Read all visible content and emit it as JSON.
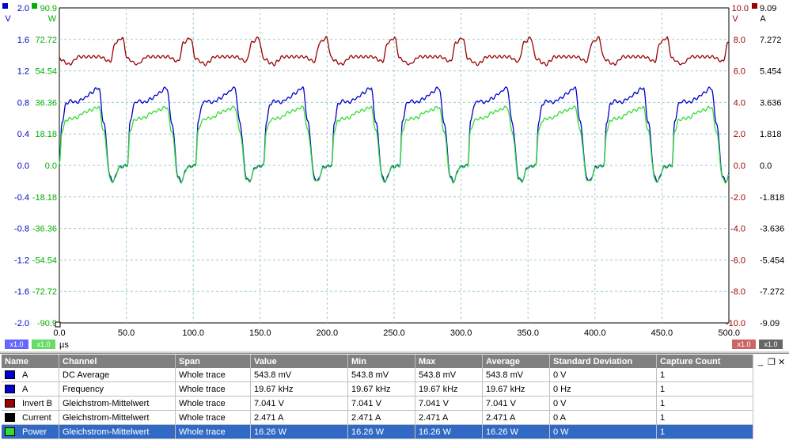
{
  "chart_data": {
    "type": "line",
    "x_unit": "µs",
    "xlim": [
      0,
      500
    ],
    "x_ticks": [
      "0.0",
      "50.0",
      "100.0",
      "150.0",
      "200.0",
      "250.0",
      "300.0",
      "350.0",
      "400.0",
      "450.0",
      "500.0"
    ],
    "axes": {
      "left1": {
        "unit": "V",
        "color": "#0000cc",
        "top": "2.0",
        "ticks": [
          "1.6",
          "1.2",
          "0.8",
          "0.4",
          "0.0",
          "-0.4",
          "-0.8",
          "-1.2",
          "-1.6",
          "-2.0"
        ],
        "range": [
          -2.0,
          2.0
        ]
      },
      "left2": {
        "unit": "W",
        "color": "#00b000",
        "top": "90.9",
        "ticks": [
          "72.72",
          "54.54",
          "36.36",
          "18.18",
          "0.0",
          "-18.18",
          "-36.36",
          "-54.54",
          "-72.72",
          "-90.9"
        ],
        "range": [
          -90.9,
          90.9
        ]
      },
      "right1": {
        "unit": "V",
        "color": "#990000",
        "top": "10.0",
        "ticks": [
          "8.0",
          "6.0",
          "4.0",
          "2.0",
          "0.0",
          "-2.0",
          "-4.0",
          "-6.0",
          "-8.0",
          "-10.0"
        ],
        "range": [
          -10,
          10
        ]
      },
      "right2": {
        "unit": "A",
        "color": "#000000",
        "top": "9.09",
        "ticks": [
          "7.272",
          "5.454",
          "3.636",
          "1.818",
          "0.0",
          "-1.818",
          "-3.636",
          "-5.454",
          "-7.272",
          "-9.09"
        ],
        "range": [
          -9.09,
          9.09
        ]
      }
    },
    "period_us": 50.84,
    "series": [
      {
        "name": "A",
        "color": "#0000cc",
        "axis": "left1",
        "shape_x": [
          0,
          2,
          5,
          8,
          13,
          18,
          24,
          28,
          29.5,
          33,
          38,
          40,
          45,
          50.84
        ],
        "shape_y": [
          0.0,
          0.55,
          0.78,
          0.82,
          0.8,
          0.85,
          0.92,
          0.98,
          0.98,
          0.55,
          -0.15,
          -0.2,
          -0.02,
          0.0
        ]
      },
      {
        "name": "Power",
        "color": "#33dd33",
        "axis": "left2",
        "shape_x": [
          0,
          2,
          5,
          8,
          13,
          18,
          24,
          28,
          29.5,
          33,
          38,
          40,
          45,
          50.84
        ],
        "shape_y": [
          0.0,
          20.0,
          26.0,
          27.0,
          27.5,
          30.5,
          32.0,
          33.5,
          33.5,
          20.0,
          -8.0,
          -9.5,
          -1.0,
          0.0
        ]
      },
      {
        "name": "Invert B",
        "color": "#990000",
        "axis": "right1",
        "shape_x": [
          0,
          2,
          5,
          8,
          10,
          14,
          20,
          30,
          38,
          42,
          47,
          50.84
        ],
        "shape_y": [
          6.8,
          6.7,
          6.5,
          6.4,
          6.6,
          6.9,
          6.9,
          6.9,
          6.6,
          7.8,
          8.1,
          6.8
        ]
      }
    ]
  },
  "zoom_tags": {
    "a": "x1.0",
    "b": "x1.0",
    "c": "x1.0",
    "d": "x1.0"
  },
  "x_unit_label": "µs",
  "table": {
    "headers": [
      "Name",
      "Channel",
      "Span",
      "Value",
      "Min",
      "Max",
      "Average",
      "Standard Deviation",
      "Capture Count"
    ],
    "rows": [
      {
        "color": "#0000cc",
        "cells": [
          "A",
          "DC Average",
          "Whole trace",
          "543.8 mV",
          "543.8 mV",
          "543.8 mV",
          "543.8 mV",
          "0 V",
          "1"
        ]
      },
      {
        "color": "#0000cc",
        "cells": [
          "A",
          "Frequency",
          "Whole trace",
          "19.67 kHz",
          "19.67 kHz",
          "19.67 kHz",
          "19.67 kHz",
          "0 Hz",
          "1"
        ]
      },
      {
        "color": "#990000",
        "cells": [
          "Invert B",
          "Gleichstrom-Mittelwert",
          "Whole trace",
          "7.041 V",
          "7.041 V",
          "7.041 V",
          "7.041 V",
          "0 V",
          "1"
        ]
      },
      {
        "color": "#000000",
        "cells": [
          "Current",
          "Gleichstrom-Mittelwert",
          "Whole trace",
          "2.471 A",
          "2.471 A",
          "2.471 A",
          "2.471 A",
          "0 A",
          "1"
        ]
      },
      {
        "color": "#33dd33",
        "cells": [
          "Power",
          "Gleichstrom-Mittelwert",
          "Whole trace",
          "16.26 W",
          "16.26 W",
          "16.26 W",
          "16.26 W",
          "0 W",
          "1"
        ]
      }
    ],
    "selected_row": 4,
    "controls": {
      "minimize": "_",
      "restore": "❐",
      "close": "✕"
    }
  }
}
